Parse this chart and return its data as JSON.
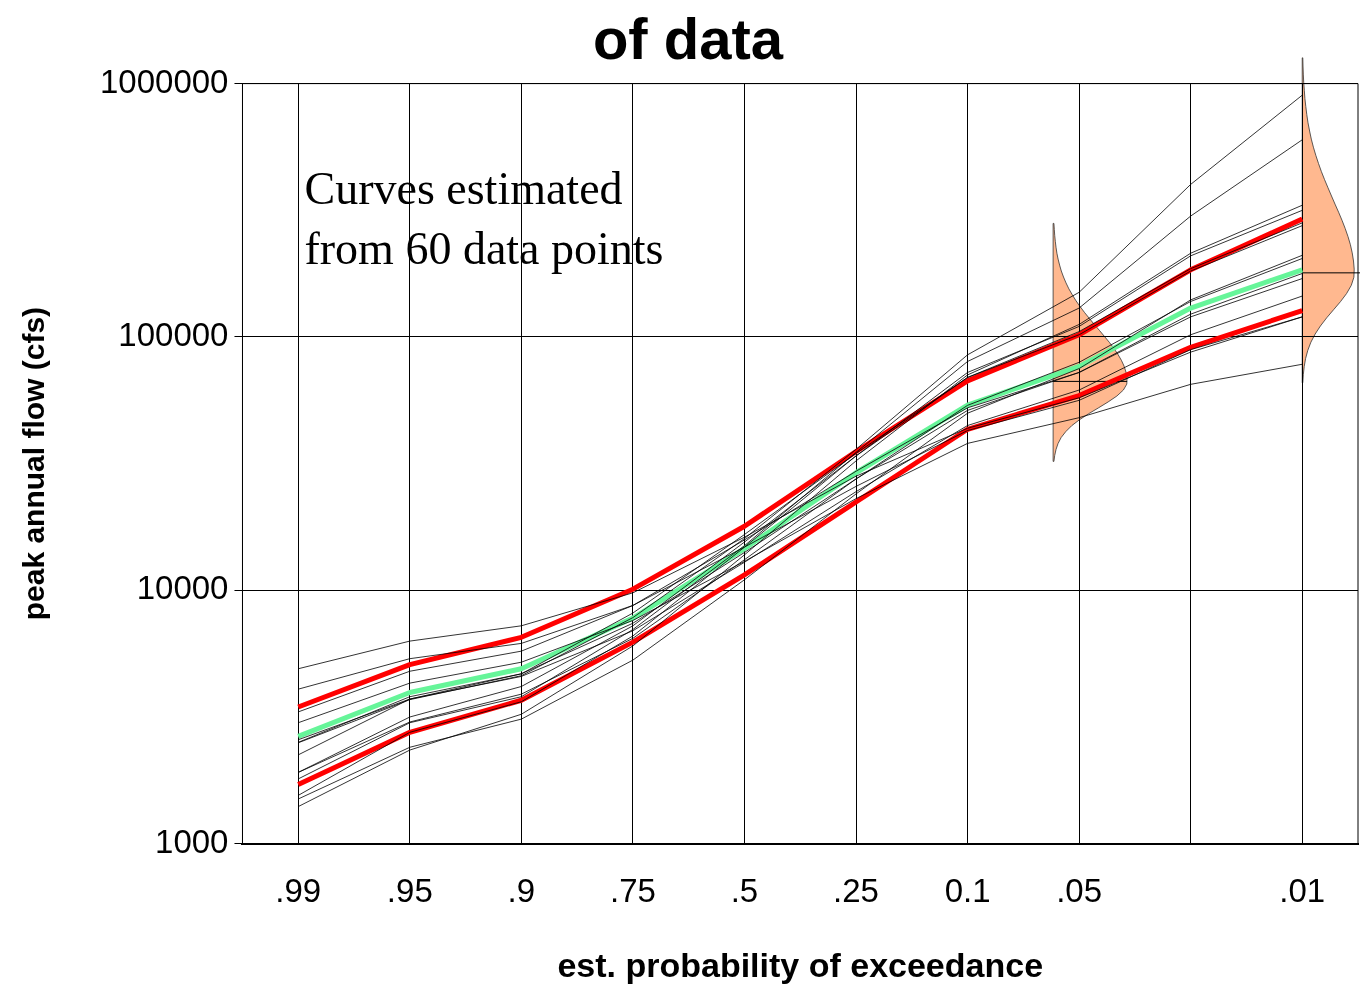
{
  "chart_data": {
    "type": "line",
    "title": "of data",
    "xlabel": "est. probability of exceedance",
    "ylabel": "peak annual flow (cfs)",
    "annotations": [
      "Curves estimated\nfrom 60 data points"
    ],
    "categories": [
      ".99",
      ".95",
      ".9",
      ".75",
      ".5",
      ".25",
      "0.1",
      ".05",
      null,
      ".01"
    ],
    "ylim": [
      1000,
      1000000
    ],
    "yticks": [
      1000,
      10000,
      100000,
      1000000
    ],
    "log": "y",
    "grid": true,
    "marker": "none",
    "series": [
      {
        "color": "#000000",
        "values": [
          1550,
          2750,
          3630,
          6600,
          14800,
          33900,
          72400,
          110000,
          209000,
          316000
        ]
      },
      {
        "color": "#000000",
        "values": [
          4070,
          5370,
          6170,
          8710,
          14800,
          25700,
          42700,
          56200,
          89100,
          120000
        ]
      },
      {
        "color": "#000000",
        "values": [
          2240,
          3720,
          4680,
          8130,
          16600,
          34700,
          69200,
          102000,
          182000,
          275000
        ]
      },
      {
        "color": "#000000",
        "values": [
          1910,
          3020,
          3890,
          6460,
          13200,
          27500,
          53700,
          79400,
          138000,
          204000
        ]
      },
      {
        "color": "#000000",
        "values": [
          3310,
          4790,
          5750,
          8710,
          15800,
          29500,
          52500,
          72400,
          120000,
          170000
        ]
      },
      {
        "color": "#000000",
        "values": [
          1400,
          2340,
          3240,
          6030,
          13800,
          32400,
          70800,
          112000,
          214000,
          331000
        ]
      },
      {
        "color": "#000000",
        "values": [
          2500,
          3700,
          4600,
          7800,
          16000,
          36000,
          85000,
          150000,
          400000,
          900000
        ]
      },
      {
        "color": "#000000",
        "values": [
          1800,
          3000,
          3800,
          7000,
          15000,
          35000,
          80000,
          130000,
          300000,
          600000
        ]
      },
      {
        "color": "#000000",
        "values": [
          4900,
          6300,
          7240,
          9770,
          16200,
          28200,
          43600,
          57500,
          87100,
          120000
        ]
      },
      {
        "color": "#000000",
        "values": [
          2570,
          3720,
          4570,
          6920,
          12900,
          24500,
          44700,
          61700,
          102000,
          145000
        ]
      },
      {
        "color": "#000000",
        "values": [
          1910,
          3160,
          4170,
          7240,
          15500,
          33900,
          69200,
          105000,
          186000,
          282000
        ]
      },
      {
        "color": "#000000",
        "values": [
          2510,
          3800,
          4680,
          7410,
          14100,
          27500,
          51300,
          72400,
          123000,
          178000
        ]
      },
      {
        "color": "#000000",
        "values": [
          3000,
          4300,
          5200,
          7600,
          13000,
          23000,
          38000,
          48000,
          65000,
          78000
        ]
      },
      {
        "color": "#000000",
        "values": [
          1500,
          2400,
          3100,
          5300,
          11000,
          24000,
          50000,
          75000,
          140000,
          210000
        ]
      },
      {
        "color": "#ff0000",
        "values": [
          3460,
          5090,
          6520,
          10100,
          17900,
          35300,
          67100,
          102000,
          184000,
          292000
        ]
      },
      {
        "color": "#ff0000",
        "values": [
          1710,
          2750,
          3680,
          6240,
          11500,
          22300,
          43200,
          58700,
          91000,
          127000
        ]
      },
      {
        "color": "#66f599",
        "values": [
          2650,
          3950,
          4900,
          7770,
          14600,
          29100,
          53800,
          76500,
          130000,
          184000
        ]
      }
    ]
  }
}
